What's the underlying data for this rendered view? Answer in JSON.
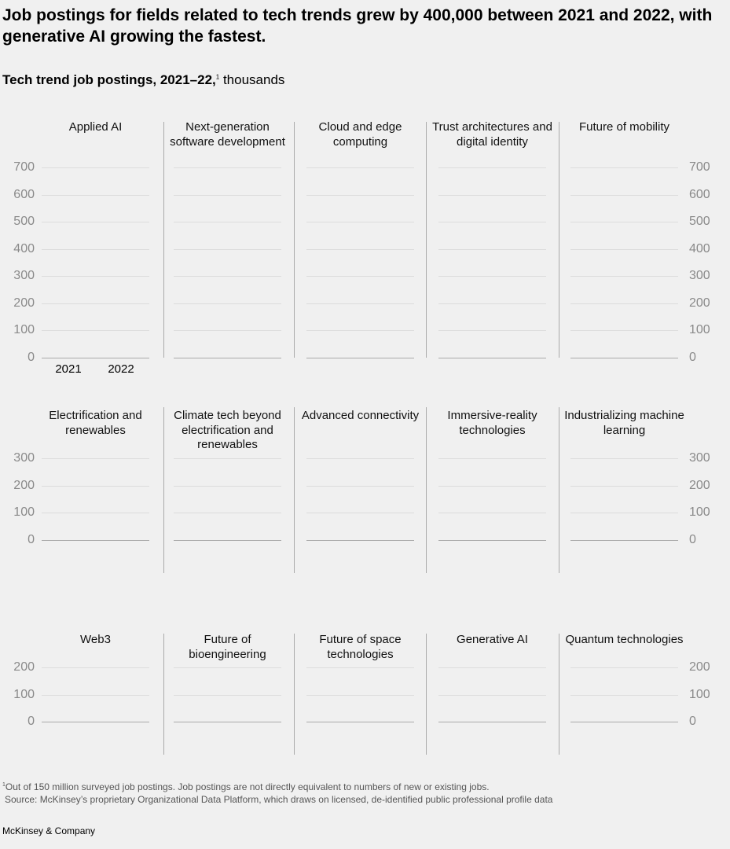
{
  "headline": "Job postings for fields related to tech trends grew by 400,000 between 2021 and 2022, with generative AI growing the fastest.",
  "subtitle": {
    "bold": "Tech trend job postings, 2021–22,",
    "sup": "1",
    "unit": " thousands"
  },
  "footnote": {
    "sup": "1",
    "text": "Out of 150 million surveyed job postings. Job postings are not directly equivalent to numbers of new or existing jobs."
  },
  "source": "Source: McKinsey’s proprietary Organizational Data Platform, which draws on licensed, de-identified public professional profile data",
  "brand": "McKinsey & Company",
  "chart_data": {
    "type": "bar",
    "categories": [
      "2021",
      "2022"
    ],
    "bar_color": "#051c2c",
    "grid": true,
    "rows": [
      {
        "yticks": [
          "0",
          "100",
          "200",
          "300",
          "400",
          "500",
          "600",
          "700"
        ],
        "ylim": [
          0,
          700
        ],
        "panels": [
          {
            "title": "Applied AI",
            "values": [
              null,
              null
            ]
          },
          {
            "title": "Next-generation software development",
            "values": [
              null,
              null
            ]
          },
          {
            "title": "Cloud and edge computing",
            "values": [
              null,
              null
            ]
          },
          {
            "title": "Trust architectures and digital identity",
            "values": [
              null,
              null
            ]
          },
          {
            "title": "Future of mobility",
            "values": [
              null,
              null
            ]
          }
        ]
      },
      {
        "yticks": [
          "0",
          "100",
          "200",
          "300"
        ],
        "ylim": [
          0,
          300
        ],
        "panels": [
          {
            "title": "Electrification and renewables",
            "values": [
              null,
              null
            ]
          },
          {
            "title": "Climate tech beyond electrification and renewables",
            "values": [
              null,
              null
            ]
          },
          {
            "title": "Advanced connectivity",
            "values": [
              null,
              null
            ]
          },
          {
            "title": "Immersive-reality technologies",
            "values": [
              null,
              null
            ]
          },
          {
            "title": "Industrializing machine learning",
            "values": [
              null,
              null
            ]
          }
        ]
      },
      {
        "yticks": [
          "0",
          "100",
          "200"
        ],
        "ylim": [
          0,
          200
        ],
        "panels": [
          {
            "title": "Web3",
            "values": [
              null,
              null
            ]
          },
          {
            "title": "Future of bioengineering",
            "values": [
              null,
              null
            ]
          },
          {
            "title": "Future of space technologies",
            "values": [
              null,
              null
            ]
          },
          {
            "title": "Generative AI",
            "values": [
              null,
              null
            ]
          },
          {
            "title": "Quantum technologies",
            "values": [
              null,
              null
            ]
          }
        ]
      }
    ]
  }
}
